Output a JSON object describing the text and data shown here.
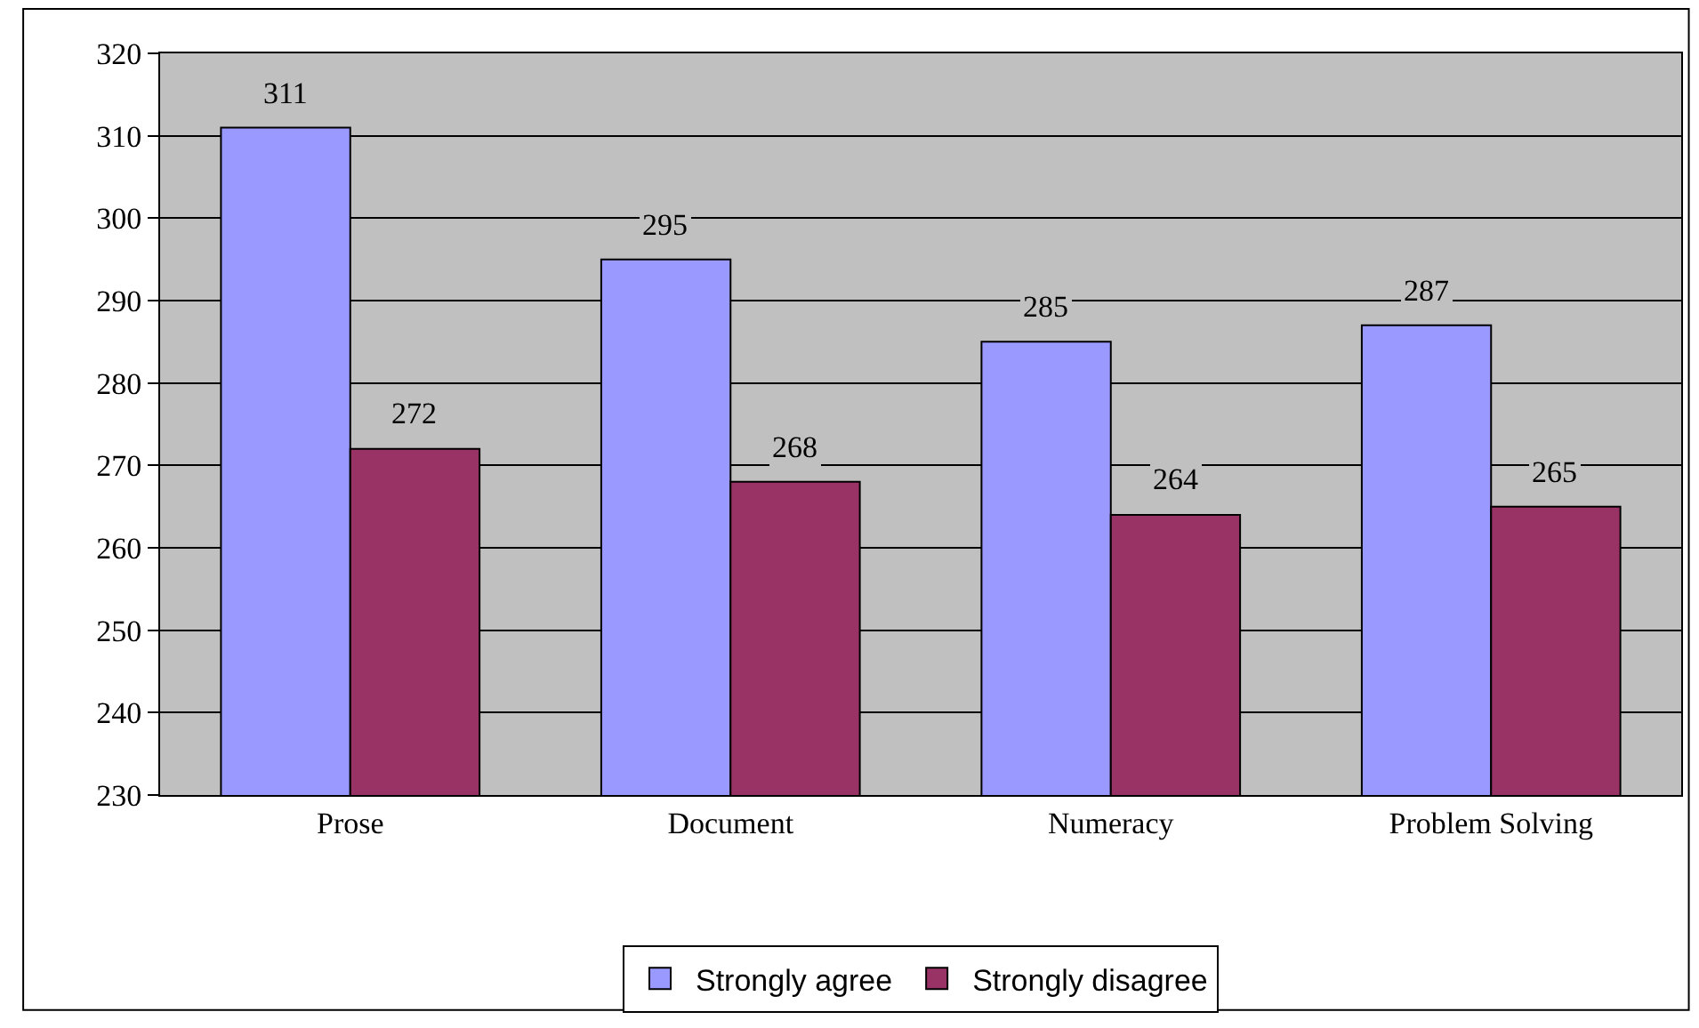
{
  "chart_data": {
    "type": "bar",
    "categories": [
      "Prose",
      "Document",
      "Numeracy",
      "Problem Solving"
    ],
    "series": [
      {
        "name": "Strongly agree",
        "color": "#9999ff",
        "values": [
          311,
          295,
          285,
          287
        ]
      },
      {
        "name": "Strongly disagree",
        "color": "#993366",
        "values": [
          272,
          268,
          264,
          265
        ]
      }
    ],
    "ylim": [
      230,
      320
    ],
    "yticks": [
      230,
      240,
      250,
      260,
      270,
      280,
      290,
      300,
      310,
      320
    ],
    "grid": "y",
    "legend": "bottom",
    "data_labels": true
  }
}
